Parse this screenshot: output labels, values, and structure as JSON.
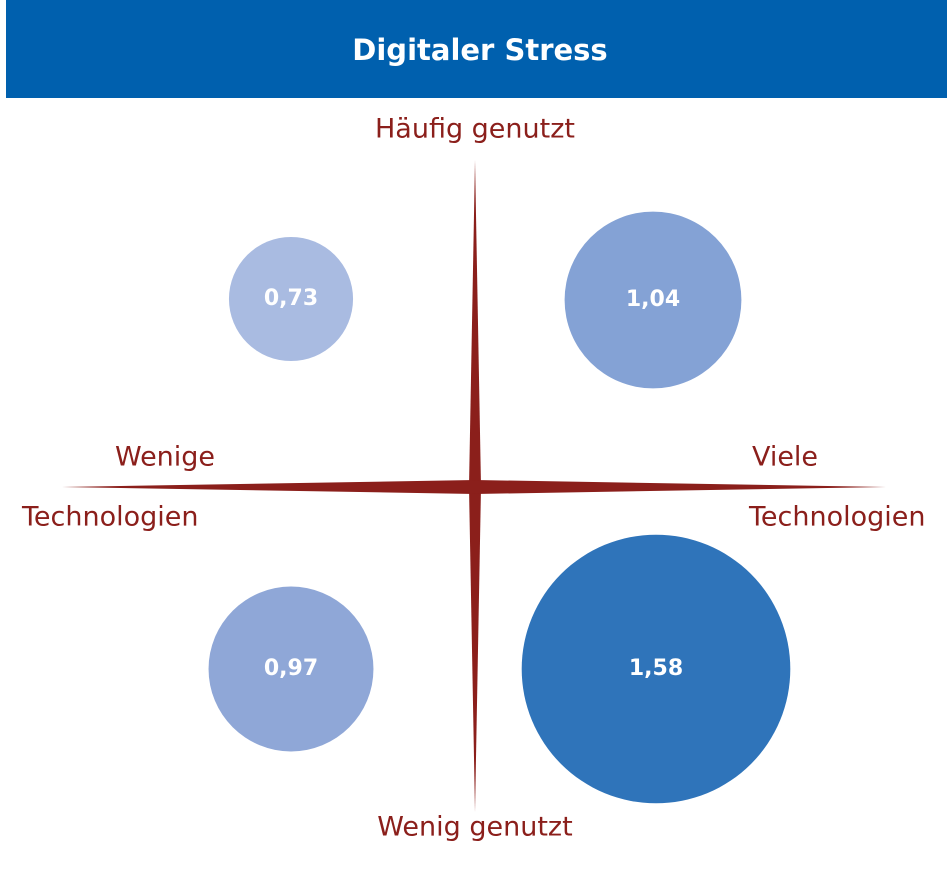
{
  "chart_data": {
    "type": "bubble",
    "title": "Digitaler Stress",
    "top_label": "Häufig genutzt",
    "bottom_label": "Wenig genutzt",
    "left_label": [
      "Wenige",
      "Technologien"
    ],
    "right_label": [
      "Viele",
      "Technologien"
    ],
    "values": [
      0.73,
      1.04,
      0.97,
      1.58
    ],
    "value_labels": [
      "0,73",
      "1,04",
      "0,97",
      "1,58"
    ],
    "colors": [
      "#a9bbe1",
      "#84a2d5",
      "#8fa7d7",
      "#2f74ba"
    ]
  }
}
